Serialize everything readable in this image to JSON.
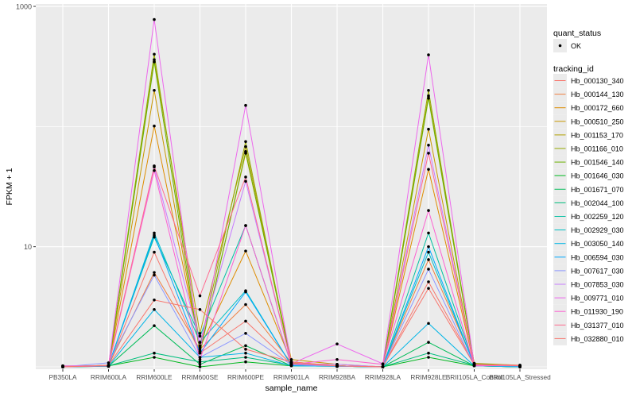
{
  "chart_data": {
    "type": "line",
    "xlabel": "sample_name",
    "ylabel": "FPKM + 1",
    "y_scale": "log10",
    "ylim": [
      1,
      1000
    ],
    "y_ticks": [
      {
        "value": 10,
        "label": "10"
      },
      {
        "value": 1000,
        "label": "1000"
      }
    ],
    "categories": [
      "PB350LA",
      "RRIM600LA",
      "RRIM600LE",
      "RRIM600SE",
      "RRIM600PE",
      "RRIM901LA",
      "RRIM928BA",
      "RRIM928LA",
      "RRIM928LE",
      "BRII105LA_Control",
      "BRII105LA_Stressed"
    ],
    "grid": true,
    "background": "#ebebeb",
    "point_color": "#000000",
    "legend_placement": "right",
    "legend_quant": {
      "title": "quant_status",
      "items": [
        "OK"
      ]
    },
    "legend_tracking": {
      "title": "tracking_id"
    },
    "series": [
      {
        "name": "Hb_000130_340",
        "color": "#f8766d",
        "values": [
          1.0,
          1.02,
          9.0,
          1.3,
          2.4,
          1.05,
          1.02,
          1.0,
          5.1,
          1.05,
          1.0
        ]
      },
      {
        "name": "Hb_000144_130",
        "color": "#ee8042",
        "values": [
          1.0,
          1.03,
          6.1,
          1.4,
          3.3,
          1.08,
          1.02,
          1.0,
          7.8,
          1.06,
          1.01
        ]
      },
      {
        "name": "Hb_000172_660",
        "color": "#de8c00",
        "values": [
          1.01,
          1.02,
          101,
          1.45,
          9.2,
          1.1,
          1.02,
          1.0,
          44,
          1.03,
          1.02
        ]
      },
      {
        "name": "Hb_000510_250",
        "color": "#c99800",
        "values": [
          1.0,
          1.02,
          200,
          1.35,
          60,
          1.15,
          1.05,
          1.0,
          95,
          1.02,
          1.0
        ]
      },
      {
        "name": "Hb_001153_170",
        "color": "#b2a100",
        "values": [
          1.02,
          1.02,
          360,
          1.9,
          68,
          1.08,
          1.01,
          1.0,
          180,
          1.07,
          1.03
        ]
      },
      {
        "name": "Hb_001166_010",
        "color": "#96a800",
        "values": [
          1.0,
          1.01,
          400,
          1.5,
          75,
          1.05,
          1.02,
          1.0,
          200,
          1.05,
          1.0
        ]
      },
      {
        "name": "Hb_001546_140",
        "color": "#6bb100",
        "values": [
          1.0,
          1.02,
          345,
          1.3,
          62,
          1.06,
          1.02,
          1.0,
          172,
          1.06,
          1.01
        ]
      },
      {
        "name": "Hb_001646_030",
        "color": "#00b81f",
        "values": [
          1.0,
          1.02,
          1.2,
          1.0,
          1.1,
          1.02,
          1.01,
          1.0,
          1.2,
          1.02,
          1.0
        ]
      },
      {
        "name": "Hb_001671_070",
        "color": "#00bc59",
        "values": [
          1.0,
          1.01,
          2.2,
          1.05,
          1.5,
          1.02,
          1.01,
          1.0,
          1.6,
          1.02,
          1.0
        ]
      },
      {
        "name": "Hb_002044_100",
        "color": "#00be7d",
        "values": [
          1.01,
          1.02,
          1.3,
          1.1,
          1.2,
          1.03,
          1.01,
          1.0,
          1.3,
          1.03,
          1.01
        ]
      },
      {
        "name": "Hb_002259_120",
        "color": "#00c0a2",
        "values": [
          1.0,
          1.03,
          12,
          1.8,
          15,
          1.04,
          1.02,
          1.0,
          13,
          1.05,
          1.02
        ]
      },
      {
        "name": "Hb_002929_030",
        "color": "#00bfc4",
        "values": [
          1.0,
          1.02,
          13,
          1.6,
          4.3,
          1.03,
          1.01,
          1.0,
          9.0,
          1.04,
          1.0
        ]
      },
      {
        "name": "Hb_003050_140",
        "color": "#00b5e6",
        "values": [
          1.0,
          1.01,
          3.0,
          1.2,
          1.3,
          1.02,
          1.01,
          1.0,
          2.3,
          1.02,
          1.0
        ]
      },
      {
        "name": "Hb_006594_030",
        "color": "#00a9ff",
        "values": [
          1.0,
          1.02,
          12.5,
          1.3,
          4.2,
          1.03,
          1.02,
          1.0,
          10,
          1.03,
          1.02
        ]
      },
      {
        "name": "Hb_007617_030",
        "color": "#8c97ff",
        "values": [
          1.0,
          1.08,
          5.8,
          1.2,
          1.9,
          1.04,
          1.01,
          1.0,
          6.5,
          1.02,
          1.02
        ]
      },
      {
        "name": "Hb_007853_030",
        "color": "#c77cff",
        "values": [
          1.0,
          1.03,
          46,
          1.6,
          35,
          1.06,
          1.05,
          1.0,
          70,
          1.03,
          1.02
        ]
      },
      {
        "name": "Hb_009771_010",
        "color": "#ed68ed",
        "values": [
          1.02,
          1.02,
          777,
          1.35,
          150,
          1.06,
          1.55,
          1.06,
          395,
          1.04,
          1.03
        ]
      },
      {
        "name": "Hb_011930_190",
        "color": "#fd61d1",
        "values": [
          1.0,
          1.02,
          43,
          1.15,
          15,
          1.05,
          1.15,
          1.05,
          20,
          1.02,
          1.03
        ]
      },
      {
        "name": "Hb_031377_010",
        "color": "#ff6c91",
        "values": [
          1.0,
          1.02,
          47,
          3.9,
          38,
          1.06,
          1.02,
          1.0,
          60,
          1.05,
          1.02
        ]
      },
      {
        "name": "Hb_032880_010",
        "color": "#f8766d",
        "values": [
          1.0,
          1.03,
          3.6,
          3.0,
          1.4,
          1.1,
          1.02,
          1.0,
          4.5,
          1.04,
          1.03
        ]
      }
    ]
  }
}
